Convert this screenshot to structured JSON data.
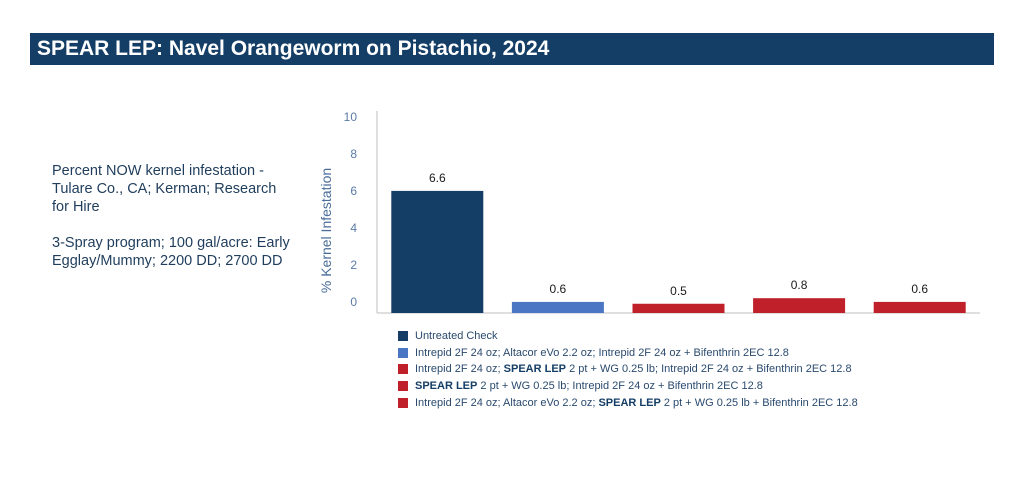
{
  "header": {
    "title": "SPEAR LEP: Navel Orangeworm on Pistachio, 2024"
  },
  "description": {
    "line1": "Percent NOW kernel infestation - Tulare Co., CA; Kerman; Research for Hire",
    "line2": "3-Spray program; 100 gal/acre: Early Egglay/Mummy; 2200 DD; 2700 DD"
  },
  "colors": {
    "navy": "#153e67",
    "blue": "#4a76c4",
    "red": "#c0202a"
  },
  "chart_data": {
    "type": "bar",
    "title": "",
    "xlabel": "",
    "ylabel": "% Kernel Infestation",
    "ylim": [
      0,
      10
    ],
    "yticks": [
      0,
      2,
      4,
      6,
      8,
      10
    ],
    "grid": false,
    "legend_position": "bottom",
    "categories": [
      "Untreated Check",
      "Intrepid 2F 24 oz; Altacor eVo 2.2 oz; Intrepid 2F 24 oz + Bifenthrin 2EC 12.8",
      "Intrepid 2F 24 oz; SPEAR LEP 2 pt + WG 0.25 lb; Intrepid 2F 24 oz + Bifenthrin 2EC 12.8",
      "SPEAR LEP 2 pt + WG 0.25 lb; Intrepid 2F 24 oz + Bifenthrin 2EC 12.8",
      "Intrepid 2F 24 oz; Altacor eVo 2.2 oz; SPEAR LEP 2 pt + WG 0.25 lb + Bifenthrin 2EC 12.8"
    ],
    "values": [
      6.6,
      0.6,
      0.5,
      0.8,
      0.6
    ],
    "data_labels": [
      "6.6",
      "0.6",
      "0.5",
      "0.8",
      "0.6"
    ],
    "bar_colors": [
      "#153e67",
      "#4a76c4",
      "#c0202a",
      "#c0202a",
      "#c0202a"
    ]
  },
  "legend": [
    {
      "parts": [
        {
          "text": "Untreated Check",
          "bold": false
        }
      ]
    },
    {
      "parts": [
        {
          "text": "Intrepid 2F 24 oz; Altacor eVo 2.2 oz; Intrepid 2F 24 oz + Bifenthrin 2EC 12.8",
          "bold": false
        }
      ]
    },
    {
      "parts": [
        {
          "text": "Intrepid 2F 24 oz; ",
          "bold": false
        },
        {
          "text": "SPEAR LEP",
          "bold": true
        },
        {
          "text": " 2 pt + WG 0.25 lb; Intrepid 2F 24 oz + Bifenthrin 2EC 12.8",
          "bold": false
        }
      ]
    },
    {
      "parts": [
        {
          "text": "SPEAR LEP",
          "bold": true
        },
        {
          "text": " 2 pt + WG 0.25 lb; Intrepid 2F 24 oz + Bifenthrin 2EC 12.8",
          "bold": false
        }
      ]
    },
    {
      "parts": [
        {
          "text": "Intrepid 2F 24 oz; Altacor eVo 2.2 oz; ",
          "bold": false
        },
        {
          "text": "SPEAR LEP",
          "bold": true
        },
        {
          "text": " 2 pt + WG 0.25 lb + Bifenthrin 2EC 12.8",
          "bold": false
        }
      ]
    }
  ]
}
